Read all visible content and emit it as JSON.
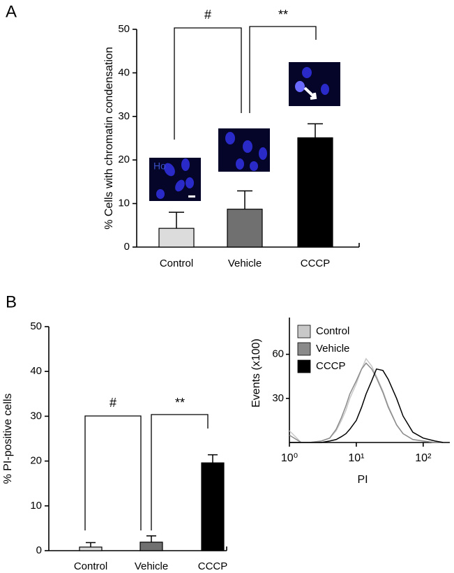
{
  "chart_data": [
    {
      "type": "bar",
      "panel_label": "A",
      "y_label": "% Cells with chromatin condensation",
      "categories": [
        "Control",
        "Vehicle",
        "CCCP"
      ],
      "values": [
        4.3,
        8.7,
        25.1
      ],
      "errors": [
        3.7,
        4.2,
        3.2
      ],
      "colors": [
        "#dcdcdc",
        "#707070",
        "#000000"
      ],
      "ylim": [
        0,
        50
      ],
      "yticks": [
        0,
        10,
        20,
        30,
        40,
        50
      ],
      "annotations": [
        "#",
        "**"
      ],
      "inset_label": "Ho"
    },
    {
      "type": "bar",
      "panel_label": "B",
      "y_label": "% PI-positive cells",
      "categories": [
        "Control",
        "Vehicle",
        "CCCP"
      ],
      "values": [
        0.8,
        1.9,
        19.6
      ],
      "errors": [
        1.0,
        1.4,
        1.8
      ],
      "colors": [
        "#dcdcdc",
        "#707070",
        "#000000"
      ],
      "ylim": [
        0,
        50
      ],
      "yticks": [
        0,
        10,
        20,
        30,
        40,
        50
      ],
      "annotations": [
        "#",
        "**"
      ]
    },
    {
      "type": "line",
      "x_label": "PI",
      "y_label": "Events (x100)",
      "xscale": "log",
      "legend": "upper left",
      "x": [
        1,
        1.5,
        2,
        3,
        4,
        5,
        6,
        7,
        8,
        10,
        12,
        14,
        17,
        20,
        25,
        30,
        40,
        50,
        70,
        100,
        150,
        200
      ],
      "series": [
        {
          "name": "Control",
          "color": "#c8c8c8",
          "values": [
            8,
            0,
            0,
            1,
            3,
            8,
            15,
            22,
            30,
            40,
            50,
            57,
            52,
            45,
            35,
            25,
            12,
            6,
            2,
            1,
            0,
            0
          ]
        },
        {
          "name": "Vehicle",
          "color": "#8a8a8a",
          "values": [
            5,
            0,
            0,
            1,
            3,
            9,
            17,
            25,
            33,
            42,
            50,
            54,
            50,
            44,
            34,
            24,
            12,
            6,
            2,
            1,
            0,
            0
          ]
        },
        {
          "name": "CCCP",
          "color": "#000000",
          "values": [
            0,
            0,
            0,
            0,
            1,
            2,
            4,
            6,
            9,
            15,
            24,
            33,
            42,
            50,
            49,
            43,
            30,
            18,
            7,
            3,
            1,
            0
          ]
        }
      ],
      "xlim": [
        1,
        250
      ],
      "ylim": [
        0,
        85
      ],
      "xticks": [
        {
          "value": 1,
          "label": "10⁰"
        },
        {
          "value": 10,
          "label": "10¹"
        },
        {
          "value": 100,
          "label": "10²"
        }
      ],
      "yticks": [
        30,
        60
      ]
    }
  ]
}
